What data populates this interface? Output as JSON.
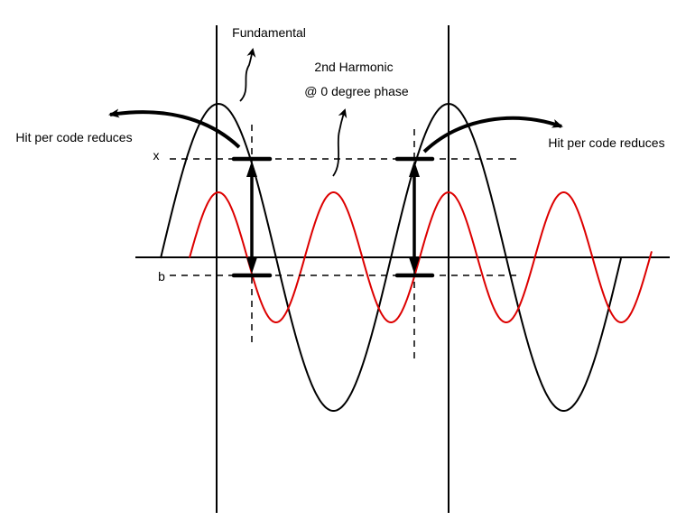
{
  "labels": {
    "fundamental": "Fundamental",
    "harmonic_line1": "2nd Harmonic",
    "harmonic_line2": "@ 0 degree phase",
    "hit_left": "Hit per code reduces",
    "hit_right": "Hit per code reduces",
    "x_level": "x",
    "b_level": "b"
  },
  "colors": {
    "fundamental": "#000000",
    "harmonic": "#dd0000"
  }
}
